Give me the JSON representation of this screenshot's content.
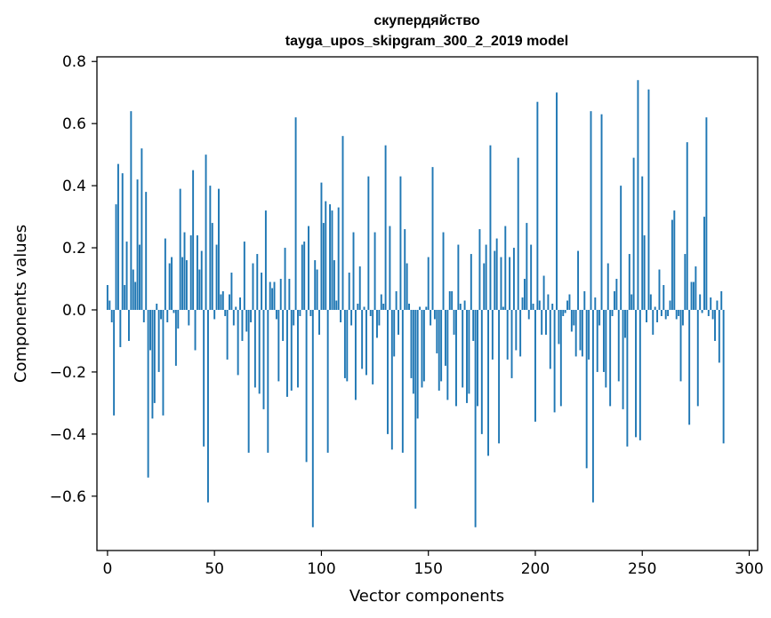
{
  "chart_data": {
    "type": "bar",
    "title": "скупердяйство",
    "subtitle": "tayga_upos_skipgram_300_2_2019 model",
    "xlabel": "Vector components",
    "ylabel": "Components values",
    "xlim": [
      -4.95,
      303.95
    ],
    "ylim": [
      -0.775,
      0.815
    ],
    "xticks": [
      0,
      50,
      100,
      150,
      200,
      250,
      300
    ],
    "xtick_labels": [
      "0",
      "50",
      "100",
      "150",
      "200",
      "250",
      "300"
    ],
    "yticks": [
      -0.6,
      -0.4,
      -0.2,
      0.0,
      0.2,
      0.4,
      0.6,
      0.8
    ],
    "ytick_labels": [
      "−0.6",
      "−0.4",
      "−0.2",
      "0.0",
      "0.2",
      "0.4",
      "0.6",
      "0.8"
    ],
    "grid": false,
    "bar_color": "#1f77b4",
    "values": [
      0.08,
      0.03,
      -0.04,
      -0.34,
      0.34,
      0.47,
      -0.12,
      0.44,
      0.08,
      0.22,
      -0.1,
      0.64,
      0.13,
      0.09,
      0.42,
      0.21,
      0.52,
      -0.04,
      0.38,
      -0.54,
      -0.13,
      -0.35,
      -0.3,
      0.02,
      -0.2,
      -0.03,
      -0.34,
      0.23,
      -0.04,
      0.15,
      0.17,
      -0.01,
      -0.18,
      -0.06,
      0.39,
      0.17,
      0.25,
      0.16,
      -0.05,
      0.24,
      0.45,
      -0.13,
      0.24,
      0.13,
      0.19,
      -0.44,
      0.5,
      -0.62,
      0.4,
      0.28,
      -0.03,
      0.21,
      0.39,
      0.05,
      0.06,
      -0.02,
      -0.16,
      0.05,
      0.12,
      -0.05,
      0.01,
      -0.21,
      0.04,
      -0.1,
      0.22,
      -0.07,
      -0.46,
      -0.04,
      0.15,
      -0.25,
      0.18,
      -0.27,
      0.12,
      -0.32,
      0.32,
      -0.46,
      0.09,
      0.07,
      0.09,
      -0.03,
      -0.23,
      0.1,
      -0.1,
      0.2,
      -0.28,
      0.1,
      -0.26,
      -0.05,
      0.62,
      -0.25,
      -0.02,
      0.21,
      0.22,
      -0.49,
      0.27,
      -0.02,
      -0.7,
      0.16,
      0.13,
      -0.08,
      0.41,
      0.28,
      0.35,
      -0.46,
      0.34,
      0.32,
      0.16,
      0.03,
      0.33,
      -0.04,
      0.56,
      -0.22,
      -0.23,
      0.12,
      -0.05,
      0.25,
      -0.29,
      0.02,
      0.14,
      -0.19,
      0.01,
      -0.21,
      0.43,
      -0.02,
      -0.24,
      0.25,
      -0.09,
      -0.05,
      0.05,
      0.02,
      0.53,
      -0.4,
      0.27,
      -0.45,
      -0.15,
      0.06,
      -0.08,
      0.43,
      -0.46,
      0.26,
      0.15,
      0.02,
      -0.22,
      -0.27,
      -0.64,
      -0.35,
      0.01,
      -0.25,
      -0.23,
      0.01,
      0.17,
      -0.05,
      0.46,
      -0.03,
      -0.14,
      -0.26,
      -0.23,
      0.25,
      -0.18,
      -0.29,
      0.06,
      0.06,
      -0.08,
      -0.31,
      0.21,
      0.02,
      -0.25,
      0.03,
      -0.3,
      -0.27,
      0.18,
      -0.1,
      -0.7,
      -0.31,
      0.26,
      -0.4,
      0.15,
      0.21,
      -0.47,
      0.53,
      -0.16,
      0.19,
      0.23,
      -0.43,
      0.17,
      0.01,
      0.27,
      -0.16,
      0.17,
      -0.22,
      0.2,
      -0.13,
      0.49,
      -0.15,
      0.04,
      0.1,
      0.28,
      -0.03,
      0.21,
      0.02,
      -0.36,
      0.67,
      0.03,
      -0.08,
      0.11,
      -0.08,
      0.05,
      -0.19,
      0.02,
      -0.33,
      0.7,
      -0.11,
      -0.31,
      -0.02,
      -0.01,
      0.03,
      0.05,
      -0.07,
      -0.05,
      -0.15,
      0.19,
      -0.13,
      -0.15,
      0.06,
      -0.51,
      -0.16,
      0.64,
      -0.62,
      0.04,
      -0.2,
      -0.05,
      0.63,
      -0.2,
      -0.25,
      0.15,
      -0.31,
      -0.02,
      0.06,
      0.1,
      -0.23,
      0.4,
      -0.32,
      -0.09,
      -0.44,
      0.18,
      0.05,
      0.49,
      -0.41,
      0.74,
      -0.42,
      0.43,
      0.24,
      -0.04,
      0.71,
      0.05,
      -0.08,
      0.01,
      -0.04,
      0.13,
      -0.02,
      0.08,
      -0.03,
      -0.02,
      0.03,
      0.29,
      0.32,
      -0.03,
      -0.02,
      -0.23,
      -0.05,
      0.18,
      0.54,
      -0.37,
      0.09,
      0.09,
      0.14,
      -0.31,
      0.05,
      -0.01,
      0.3,
      0.62,
      -0.02,
      0.04,
      -0.03,
      -0.1,
      0.03,
      -0.17,
      0.06,
      -0.43
    ]
  }
}
